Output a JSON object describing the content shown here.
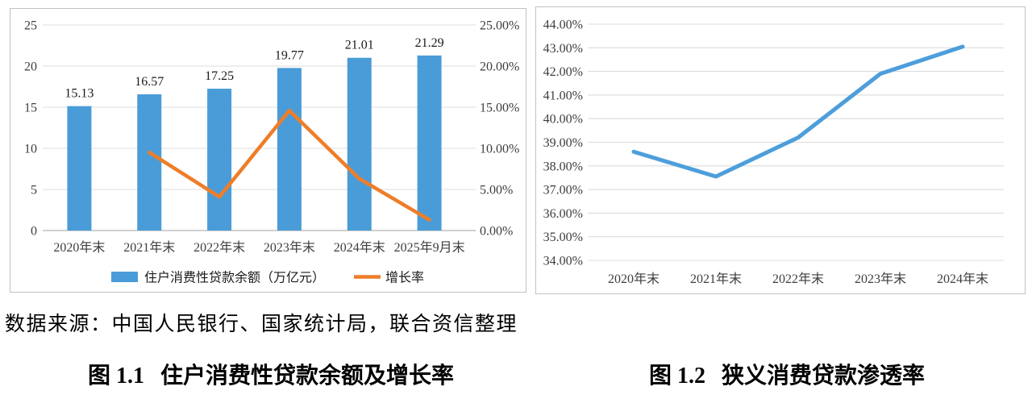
{
  "source_note": "数据来源：中国人民银行、国家统计局，联合资信整理",
  "captions": {
    "left": {
      "label": "图 1.1",
      "title": "住户消费性贷款余额及增长率"
    },
    "right": {
      "label": "图 1.2",
      "title": "狭义消费贷款渗透率"
    }
  },
  "colors": {
    "bar_blue": "#4A9CD8",
    "growth_orange": "#EF7D28",
    "penetration_blue": "#4D9EDB",
    "gridline": "#DCDCDC",
    "axis_line": "#C0C0C0",
    "tick_text": "#3D3D3D",
    "label_text": "#1A1A1A"
  },
  "chart_data": [
    {
      "id": "household-consumer-loan-balance-and-growth",
      "type": "bar+line",
      "categories": [
        "2020年末",
        "2021年末",
        "2022年末",
        "2023年末",
        "2024年末",
        "2025年9月末"
      ],
      "series": [
        {
          "name": "住户消费性贷款余额（万亿元）",
          "type": "bar",
          "axis": "left",
          "values": [
            15.13,
            16.57,
            17.25,
            19.77,
            21.01,
            21.29
          ],
          "data_labels": [
            "15.13",
            "16.57",
            "17.25",
            "19.77",
            "21.01",
            "21.29"
          ]
        },
        {
          "name": "增长率",
          "type": "line",
          "axis": "right",
          "values_percent": [
            null,
            9.5,
            4.1,
            14.6,
            6.3,
            1.3
          ]
        }
      ],
      "left_axis": {
        "min": 0,
        "max": 25,
        "step": 5,
        "ticks": [
          "0",
          "5",
          "10",
          "15",
          "20",
          "25"
        ]
      },
      "right_axis": {
        "min": 0,
        "max": 25,
        "step": 5,
        "ticks": [
          "0.00%",
          "5.00%",
          "10.00%",
          "15.00%",
          "20.00%",
          "25.00%"
        ]
      },
      "grid": "horizontal",
      "legend_position": "bottom"
    },
    {
      "id": "narrow-consumer-loan-penetration",
      "type": "line",
      "categories": [
        "2020年末",
        "2021年末",
        "2022年末",
        "2023年末",
        "2024年末"
      ],
      "series": [
        {
          "name": "狭义消费贷款渗透率",
          "type": "line",
          "values_percent": [
            38.6,
            37.55,
            39.2,
            41.9,
            43.05
          ]
        }
      ],
      "y_axis": {
        "min": 34,
        "max": 44,
        "step": 1,
        "ticks": [
          "34.00%",
          "35.00%",
          "36.00%",
          "37.00%",
          "38.00%",
          "39.00%",
          "40.00%",
          "41.00%",
          "42.00%",
          "43.00%",
          "44.00%"
        ]
      },
      "grid": "horizontal",
      "legend_position": "none"
    }
  ]
}
